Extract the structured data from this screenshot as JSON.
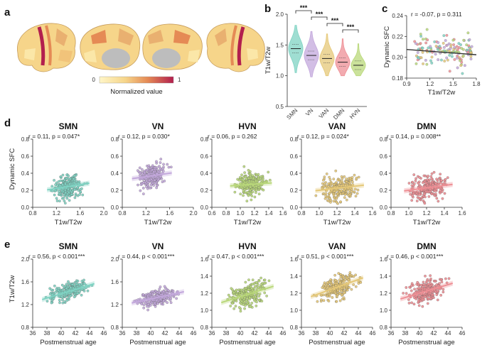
{
  "panel_labels": {
    "a": "a",
    "b": "b",
    "c": "c",
    "d": "d",
    "e": "e"
  },
  "colors": {
    "SMN": "#7fd3c3",
    "VN": "#c3a8dc",
    "HVN": "#b9d87a",
    "VAN": "#e5c878",
    "DMN": "#ee8f95",
    "brain_low": "#fff6c8",
    "brain_high": "#b21f4e",
    "gray_fit": "#333333"
  },
  "panel_a": {
    "colorbar_min": "0",
    "colorbar_max": "1",
    "colorbar_label": "Normalized value"
  },
  "chart_data": [
    {
      "id": "b",
      "type": "violin",
      "categories": [
        "SMN",
        "VN",
        "VAN",
        "DMN",
        "HVN"
      ],
      "medians": [
        1.44,
        1.33,
        1.28,
        1.22,
        1.17
      ],
      "ranges": [
        [
          1.05,
          1.82
        ],
        [
          0.98,
          1.72
        ],
        [
          1.0,
          1.68
        ],
        [
          1.0,
          1.6
        ],
        [
          1.0,
          1.52
        ]
      ],
      "ylabel": "T1w/T2w",
      "ylim": [
        0.5,
        2.0
      ],
      "yticks": [
        "0.5",
        "1.0",
        "1.5",
        "2.0"
      ],
      "significance": [
        "***",
        "***",
        "***",
        "***"
      ]
    },
    {
      "id": "c",
      "type": "scatter",
      "xlabel": "T1w/T2w",
      "ylabel": "Dynamic SFC",
      "xlim": [
        0.9,
        1.8
      ],
      "ylim": [
        0.18,
        0.24
      ],
      "xticks": [
        "0.9",
        "1.2",
        "1.5",
        "1.8"
      ],
      "yticks": [
        "0.18",
        "0.20",
        "0.22",
        "0.24"
      ],
      "annotation": "r = -0.07, p = 0.311",
      "fit": {
        "slope": -0.0056,
        "intercept": 0.2125
      }
    },
    {
      "id": "d",
      "type": "scatter",
      "ylabel": "Dynamic SFC",
      "xlabel": "T1w/T2w",
      "panels": [
        {
          "network": "SMN",
          "annotation": "r = 0.11, p = 0.047*",
          "xlim": [
            0.8,
            2.0
          ],
          "xticks": [
            "0.8",
            "1.2",
            "1.6",
            "2.0"
          ],
          "ylim": [
            0.0,
            0.8
          ],
          "yticks": [
            "0.0",
            "0.2",
            "0.4",
            "0.6",
            "0.8"
          ],
          "fit": {
            "slope": 0.11,
            "intercept": 0.09
          }
        },
        {
          "network": "VN",
          "annotation": "r = 0.12, p = 0.030*",
          "xlim": [
            0.8,
            2.0
          ],
          "xticks": [
            "0.8",
            "1.2",
            "1.6",
            "2.0"
          ],
          "ylim": [
            0.0,
            0.8
          ],
          "yticks": [
            "0.0",
            "0.2",
            "0.4",
            "0.6",
            "0.8"
          ],
          "fit": {
            "slope": 0.1,
            "intercept": 0.24
          }
        },
        {
          "network": "HVN",
          "annotation": "r = 0.06, p = 0.262",
          "xlim": [
            0.6,
            1.6
          ],
          "xticks": [
            "0.6",
            "0.8",
            "1.0",
            "1.2",
            "1.4",
            "1.6"
          ],
          "ylim": [
            0.0,
            0.8
          ],
          "yticks": [
            "0.0",
            "0.2",
            "0.4",
            "0.6",
            "0.8"
          ],
          "fit": {
            "slope": 0.06,
            "intercept": 0.2
          }
        },
        {
          "network": "VAN",
          "annotation": "r = 0.12, p = 0.024*",
          "xlim": [
            0.8,
            1.6
          ],
          "xticks": [
            "0.8",
            "1.0",
            "1.2",
            "1.4",
            "1.6"
          ],
          "ylim": [
            0.0,
            0.8
          ],
          "yticks": [
            "0.0",
            "0.2",
            "0.4",
            "0.6",
            "0.8"
          ],
          "fit": {
            "slope": 0.12,
            "intercept": 0.08
          }
        },
        {
          "network": "DMN",
          "annotation": "r = 0.14, p = 0.008**",
          "xlim": [
            0.8,
            1.6
          ],
          "xticks": [
            "0.8",
            "1.0",
            "1.2",
            "1.4",
            "1.6"
          ],
          "ylim": [
            0.0,
            0.8
          ],
          "yticks": [
            "0.0",
            "0.2",
            "0.4",
            "0.6",
            "0.8"
          ],
          "fit": {
            "slope": 0.14,
            "intercept": 0.06
          }
        }
      ]
    },
    {
      "id": "e",
      "type": "scatter",
      "ylabel": "T1w/T2w",
      "xlabel": "Postmenstrual age",
      "xlim": [
        36,
        46
      ],
      "xticks": [
        "36",
        "38",
        "40",
        "42",
        "44",
        "46"
      ],
      "panels": [
        {
          "network": "SMN",
          "annotation": "r = 0.56, p < 0.001***",
          "ylim": [
            0.8,
            2.0
          ],
          "yticks": [
            "0.8",
            "1.2",
            "1.6",
            "2.0"
          ],
          "fit": {
            "slope": 0.038,
            "intercept": -0.13
          }
        },
        {
          "network": "VN",
          "annotation": "r = 0.44, p < 0.001***",
          "ylim": [
            0.8,
            2.0
          ],
          "yticks": [
            "0.8",
            "1.2",
            "1.6",
            "2.0"
          ],
          "fit": {
            "slope": 0.027,
            "intercept": 0.22
          }
        },
        {
          "network": "HVN",
          "annotation": "r = 0.47, p < 0.001***",
          "ylim": [
            0.8,
            1.6
          ],
          "yticks": [
            "0.8",
            "1.0",
            "1.2",
            "1.4",
            "1.6"
          ],
          "fit": {
            "slope": 0.026,
            "intercept": 0.12
          }
        },
        {
          "network": "VAN",
          "annotation": "r = 0.51, p < 0.001***",
          "ylim": [
            0.8,
            1.6
          ],
          "yticks": [
            "0.8",
            "1.0",
            "1.2",
            "1.4",
            "1.6"
          ],
          "fit": {
            "slope": 0.03,
            "intercept": 0.04
          }
        },
        {
          "network": "DMN",
          "annotation": "r = 0.46, p < 0.001***",
          "ylim": [
            0.8,
            1.6
          ],
          "yticks": [
            "0.8",
            "1.0",
            "1.2",
            "1.4",
            "1.6"
          ],
          "fit": {
            "slope": 0.025,
            "intercept": 0.2
          }
        }
      ]
    }
  ]
}
